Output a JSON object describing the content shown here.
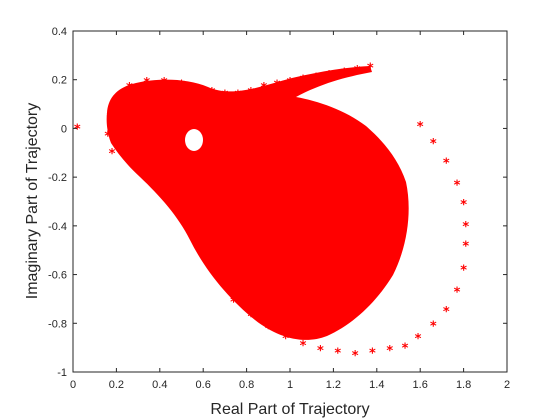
{
  "chart_data": {
    "type": "scatter",
    "xlabel": "Real Part of Trajectory",
    "ylabel": "Imaginary Part of Trajectory",
    "xlim": [
      0,
      2
    ],
    "ylim": [
      -1,
      0.4
    ],
    "x_ticks": [
      "0",
      "0.2",
      "0.4",
      "0.6",
      "0.8",
      "1",
      "1.2",
      "1.4",
      "1.6",
      "1.8",
      "2"
    ],
    "y_ticks": [
      "0.4",
      "0.2",
      "0",
      "-0.2",
      "-0.4",
      "-0.6",
      "-0.8",
      "-1"
    ],
    "grid": false,
    "legend": "none",
    "marker": "asterisk",
    "color": "#ff0000",
    "series": [
      {
        "values": [
          [
            0.02,
            0.0
          ],
          [
            1.37,
            0.25
          ],
          [
            1.31,
            0.24
          ],
          [
            1.25,
            0.23
          ],
          [
            1.18,
            0.22
          ],
          [
            1.12,
            0.21
          ],
          [
            1.06,
            0.2
          ],
          [
            1.0,
            0.19
          ],
          [
            0.94,
            0.18
          ],
          [
            0.88,
            0.17
          ],
          [
            0.82,
            0.15
          ],
          [
            0.76,
            0.14
          ],
          [
            0.7,
            0.14
          ],
          [
            0.64,
            0.15
          ],
          [
            0.58,
            0.16
          ],
          [
            0.5,
            0.18
          ],
          [
            0.42,
            0.19
          ],
          [
            0.34,
            0.19
          ],
          [
            0.26,
            0.17
          ],
          [
            0.2,
            0.12
          ],
          [
            0.17,
            0.05
          ],
          [
            0.16,
            -0.03
          ],
          [
            0.18,
            -0.1
          ],
          [
            1.6,
            0.01
          ],
          [
            1.66,
            -0.06
          ],
          [
            1.72,
            -0.14
          ],
          [
            1.77,
            -0.23
          ],
          [
            1.8,
            -0.31
          ],
          [
            1.81,
            -0.4
          ],
          [
            1.81,
            -0.48
          ],
          [
            1.8,
            -0.58
          ],
          [
            1.77,
            -0.67
          ],
          [
            1.72,
            -0.75
          ],
          [
            1.66,
            -0.81
          ],
          [
            1.59,
            -0.86
          ],
          [
            1.53,
            -0.9
          ],
          [
            1.46,
            -0.91
          ],
          [
            1.38,
            -0.92
          ],
          [
            1.3,
            -0.93
          ],
          [
            1.22,
            -0.92
          ],
          [
            1.14,
            -0.91
          ],
          [
            1.06,
            -0.89
          ],
          [
            0.98,
            -0.86
          ],
          [
            0.9,
            -0.82
          ],
          [
            0.82,
            -0.77
          ],
          [
            0.74,
            -0.71
          ]
        ]
      }
    ]
  }
}
